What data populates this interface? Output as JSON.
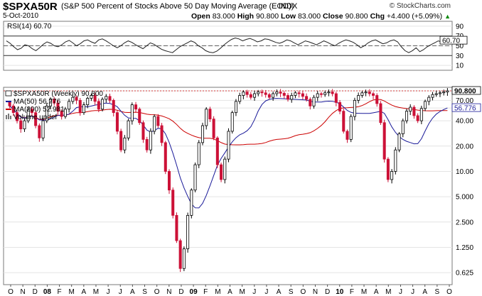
{
  "header": {
    "symbol": "$SPXA50R",
    "description": "(S&P 500 Percent of Stocks Above 50 Day Moving Average (EOD))",
    "exchange": "INDX",
    "date": "5-Oct-2010",
    "brand": "© StockCharts.com",
    "quote": {
      "open_label": "Open",
      "open": "83.000",
      "high_label": "High",
      "high": "90.800",
      "low_label": "Low",
      "low": "83.000",
      "close_label": "Close",
      "close": "90.800",
      "chg_label": "Chg",
      "chg": "+4.400 (+5.09%)",
      "chg_arrow": "▲"
    }
  },
  "colors": {
    "up_candle": "#000000",
    "down_candle": "#cc1137",
    "ma50": "#1a1a99",
    "ma200": "#cc0000",
    "last_price_bg": "#ffffff",
    "grid": "#e4e4e4"
  },
  "chart_data": [
    {
      "type": "line",
      "indicator": "RSI(14)",
      "legend": "RSI(14) 60.70",
      "last_value": 60.7,
      "last_label": "60.70",
      "y_ticks": [
        90,
        70,
        50,
        30,
        10
      ],
      "ylim": [
        0,
        100
      ],
      "reference_lines": [
        70,
        50,
        30
      ],
      "values": [
        60,
        55,
        48,
        42,
        45,
        52,
        50,
        44,
        40,
        46,
        53,
        58,
        55,
        50,
        48,
        52,
        58,
        61,
        56,
        50,
        54,
        60,
        62,
        58,
        55,
        62,
        64,
        60,
        55,
        50,
        46,
        50,
        56,
        60,
        57,
        52,
        48,
        44,
        50,
        56,
        53,
        48,
        43,
        40,
        38,
        36,
        42,
        48,
        52,
        56,
        60,
        57,
        50,
        46,
        40,
        37,
        36,
        39,
        45,
        52,
        58,
        63,
        66,
        64,
        60,
        63,
        65,
        62,
        58,
        60,
        64,
        63,
        60,
        57,
        55,
        58,
        62,
        60,
        56,
        52,
        56,
        60,
        58,
        55,
        52,
        56,
        60,
        57,
        53,
        50,
        55,
        59,
        62,
        60,
        57,
        52,
        46,
        50,
        56,
        60,
        62,
        58,
        54,
        56,
        60,
        62,
        58,
        48,
        40,
        36,
        40,
        46,
        38,
        42,
        48,
        52,
        56,
        60,
        58,
        62,
        60.7
      ]
    },
    {
      "type": "candlestick",
      "period": "Weekly",
      "legend": "$SPXA50R (Weekly) 90.800",
      "last_label": "90.800",
      "scale": "log",
      "y_ticks": [
        "90.800",
        "70.00",
        "56.776",
        "40.00",
        "20.00",
        "10.00",
        "5.000",
        "2.500",
        "1.250",
        "0.625"
      ],
      "ylim": [
        0.45,
        100
      ],
      "x_labels": [
        "O",
        "N",
        "D",
        "08",
        "F",
        "M",
        "A",
        "M",
        "J",
        "J",
        "A",
        "S",
        "O",
        "N",
        "D",
        "09",
        "F",
        "M",
        "A",
        "M",
        "J",
        "J",
        "A",
        "S",
        "O",
        "N",
        "D",
        "10",
        "F",
        "M",
        "A",
        "M",
        "J",
        "J",
        "A",
        "S",
        "O"
      ],
      "series": [
        {
          "name": "MA(50)",
          "legend": "MA(50) 56.776",
          "last": 56.776
        },
        {
          "name": "MA(200)",
          "legend": "MA(200) 52.981",
          "last": 52.981
        },
        {
          "name": "Volume undef",
          "legend": "Volume undef"
        }
      ],
      "closes": [
        60,
        50,
        40,
        32,
        40,
        55,
        50,
        35,
        25,
        40,
        60,
        72,
        65,
        52,
        45,
        55,
        68,
        76,
        70,
        50,
        62,
        74,
        80,
        68,
        55,
        72,
        78,
        70,
        50,
        30,
        18,
        25,
        40,
        62,
        55,
        38,
        24,
        18,
        30,
        45,
        35,
        22,
        10,
        6,
        3,
        1.5,
        0.7,
        1.2,
        3,
        6,
        12,
        22,
        35,
        55,
        42,
        25,
        12,
        8,
        14,
        30,
        50,
        68,
        80,
        88,
        82,
        76,
        84,
        88,
        86,
        82,
        76,
        84,
        88,
        85,
        80,
        72,
        80,
        86,
        84,
        78,
        72,
        60,
        76,
        84,
        82,
        86,
        88,
        84,
        66,
        52,
        30,
        24,
        45,
        70,
        80,
        86,
        88,
        84,
        80,
        64,
        38,
        14,
        8,
        10,
        18,
        28,
        40,
        52,
        58,
        46,
        40,
        56,
        68,
        76,
        82,
        84,
        86,
        88,
        90.8
      ]
    }
  ]
}
